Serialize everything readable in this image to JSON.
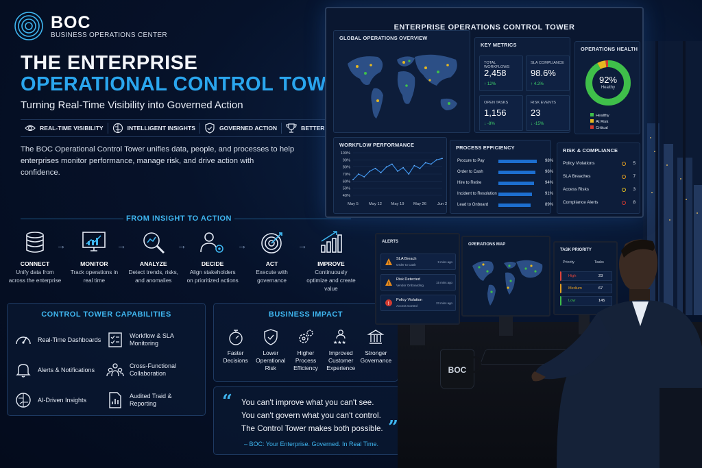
{
  "brand": {
    "name": "BOC",
    "subtitle": "BUSINESS OPERATIONS CENTER"
  },
  "hero": {
    "line1": "THE ENTERPRISE",
    "line2": "OPERATIONAL CONTROL TOWER",
    "tagline": "Turning Real-Time Visibility into Governed Action"
  },
  "pillars": [
    {
      "label": "REAL-TIME VISIBILITY",
      "icon": "eye-icon"
    },
    {
      "label": "INTELLIGENT INSIGHTS",
      "icon": "brain-icon"
    },
    {
      "label": "GOVERNED ACTION",
      "icon": "shield-check-icon"
    },
    {
      "label": "BETTER OUTCOMES",
      "icon": "trophy-icon"
    }
  ],
  "intro": "The BOC Operational Control Tower unifies data, people, and processes to help enterprises monitor performance, manage risk, and drive action with confidence.",
  "flow": {
    "title": "FROM INSIGHT TO ACTION",
    "steps": [
      {
        "title": "CONNECT",
        "desc": "Unify data from across the enterprise",
        "icon": "database-icon"
      },
      {
        "title": "MONITOR",
        "desc": "Track operations in real time",
        "icon": "monitor-chart-icon"
      },
      {
        "title": "ANALYZE",
        "desc": "Detect trends, risks, and anomalies",
        "icon": "magnifier-chart-icon"
      },
      {
        "title": "DECIDE",
        "desc": "Align stakeholders on prioritized actions",
        "icon": "person-gear-icon"
      },
      {
        "title": "ACT",
        "desc": "Execute with governance",
        "icon": "target-icon"
      },
      {
        "title": "IMPROVE",
        "desc": "Continuously optimize and create value",
        "icon": "bar-growth-icon"
      }
    ]
  },
  "capabilities": {
    "title": "CONTROL TOWER CAPABILITIES",
    "items": [
      {
        "label": "Real-Time Dashboards",
        "icon": "gauge-icon"
      },
      {
        "label": "Workflow & SLA Monitoring",
        "icon": "checklist-icon"
      },
      {
        "label": "Alerts & Notifications",
        "icon": "bell-icon"
      },
      {
        "label": "Cross-Functional Collaboration",
        "icon": "people-icon"
      },
      {
        "label": "AI-Driven Insights",
        "icon": "brain-icon"
      },
      {
        "label": "Audited Traid & Reporting",
        "icon": "document-chart-icon"
      }
    ]
  },
  "impact": {
    "title": "BUSINESS IMPACT",
    "items": [
      {
        "label": "Faster Decisions",
        "icon": "stopwatch-icon"
      },
      {
        "label": "Lower Operational Risk",
        "icon": "shield-check-icon"
      },
      {
        "label": "Higher Process Efficiency",
        "icon": "gears-icon"
      },
      {
        "label": "Improved Customer Experience",
        "icon": "customer-stars-icon"
      },
      {
        "label": "Stronger Governance",
        "icon": "pillars-icon"
      }
    ]
  },
  "quote": {
    "lines": [
      "You can't improve what you can't see.",
      "You can't govern what you can't control.",
      "The Control Tower makes both possible."
    ],
    "signature": "– BOC: Your Enterprise. Governed. In Real Time."
  },
  "dashboard": {
    "title": "ENTERPRISE OPERATIONS CONTROL TOWER",
    "global_title": "GLOBAL OPERATIONS OVERVIEW",
    "key_metrics": {
      "title": "KEY METRICS",
      "items": [
        {
          "label": "TOTAL WORKFLOWS",
          "value": "2,458",
          "delta": "↑ 12%"
        },
        {
          "label": "SLA COMPLIANCE",
          "value": "98.6%",
          "delta": "↑ 4.2%"
        },
        {
          "label": "OPEN TASKS",
          "value": "1,156",
          "delta": "↓ -8%"
        },
        {
          "label": "RISK EVENTS",
          "value": "23",
          "delta": "↓ -15%"
        }
      ]
    },
    "health": {
      "title": "OPERATIONS HEALTH",
      "value": "92%",
      "caption": "Healthy",
      "healthy_fraction": 0.92,
      "at_risk_fraction": 0.06,
      "critical_fraction": 0.02,
      "legend": [
        "Healthy",
        "At Risk",
        "Critical"
      ],
      "colors": {
        "healthy": "#3fbf4a",
        "at_risk": "#e6b820",
        "critical": "#d23a30"
      }
    },
    "workflow": {
      "title": "WORKFLOW PERFORMANCE",
      "y_ticks": [
        "100%",
        "90%",
        "80%",
        "70%",
        "60%",
        "50%",
        "40%"
      ],
      "x_ticks": [
        "May 5",
        "May 12",
        "May 19",
        "May 26",
        "Jun 2"
      ]
    },
    "process": {
      "title": "PROCESS EFFICIENCY",
      "rows": [
        {
          "label": "Procure to Pay",
          "pct": "98%",
          "value": 98
        },
        {
          "label": "Order to Cash",
          "pct": "96%",
          "value": 96
        },
        {
          "label": "Hire to Retire",
          "pct": "94%",
          "value": 94
        },
        {
          "label": "Incident to Resolution",
          "pct": "91%",
          "value": 91
        },
        {
          "label": "Lead to Onboard",
          "pct": "89%",
          "value": 89
        }
      ]
    },
    "risk": {
      "title": "RISK & COMPLIANCE",
      "rows": [
        {
          "label": "Policy Violations",
          "value": "5",
          "color": "#e6a020"
        },
        {
          "label": "SLA Breaches",
          "value": "7",
          "color": "#e6a020"
        },
        {
          "label": "Access Risks",
          "value": "3",
          "color": "#e6c020"
        },
        {
          "label": "Compliance Alerts",
          "value": "8",
          "color": "#d23a30"
        }
      ]
    }
  },
  "chart_data": {
    "type": "line",
    "title": "WORKFLOW PERFORMANCE",
    "x": [
      "May 5",
      "",
      "",
      "",
      "May 12",
      "",
      "",
      "",
      "May 19",
      "",
      "",
      "",
      "May 26",
      "",
      "",
      "",
      "Jun 2"
    ],
    "series": [
      {
        "values": [
          62,
          70,
          66,
          74,
          78,
          72,
          80,
          84,
          74,
          79,
          70,
          82,
          78,
          86,
          84,
          90,
          92
        ]
      }
    ],
    "ylim": [
      40,
      100
    ]
  },
  "desk": {
    "alerts": {
      "title": "ALERTS",
      "items": [
        {
          "title": "SLA Breach",
          "sub": "Order to Cash",
          "time": "9 mins ago",
          "color": "#e58a1e"
        },
        {
          "title": "Risk Detected",
          "sub": "Vendor Onboarding",
          "time": "15 mins ago",
          "color": "#e58a1e"
        },
        {
          "title": "Policy Violation",
          "sub": "Access Control",
          "time": "23 mins ago",
          "color": "#d23a30"
        }
      ]
    },
    "map_title": "OPERATIONS MAP",
    "task_priority": {
      "title": "TASK PRIORITY",
      "col_priority": "Priority",
      "col_tasks": "Tasks",
      "rows": [
        {
          "name": "High",
          "tasks": "23",
          "color": "#e0443a"
        },
        {
          "name": "Medium",
          "tasks": "67",
          "color": "#e6a020"
        },
        {
          "name": "Low",
          "tasks": "145",
          "color": "#3fbf4a"
        }
      ]
    },
    "mug_text": "BOC"
  }
}
